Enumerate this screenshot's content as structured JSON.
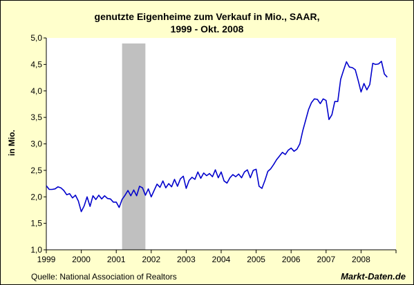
{
  "chart_data": {
    "type": "line",
    "title_line1": "genutzte Eigenheime zum Verkauf in Mio., SAAR,",
    "title_line2": "1999 - Okt. 2008",
    "xlabel": "",
    "ylabel": "in Mio.",
    "ylim": [
      1.0,
      5.0
    ],
    "xlim": [
      "1999-01",
      "2008-12"
    ],
    "y_ticks": [
      "1,0",
      "1,5",
      "2,0",
      "2,5",
      "3,0",
      "3,5",
      "4,0",
      "4,5",
      "5,0"
    ],
    "x_ticks": [
      "1999",
      "2000",
      "2001",
      "2002",
      "2003",
      "2004",
      "2005",
      "2006",
      "2007",
      "2008"
    ],
    "grid": false,
    "recession_shading": {
      "start": "2001-03",
      "end": "2001-11",
      "color": "#c0c0c0"
    },
    "series": [
      {
        "color": "#0000cc",
        "x": [
          "1999-01",
          "1999-02",
          "1999-03",
          "1999-04",
          "1999-05",
          "1999-06",
          "1999-07",
          "1999-08",
          "1999-09",
          "1999-10",
          "1999-11",
          "1999-12",
          "2000-01",
          "2000-02",
          "2000-03",
          "2000-04",
          "2000-05",
          "2000-06",
          "2000-07",
          "2000-08",
          "2000-09",
          "2000-10",
          "2000-11",
          "2000-12",
          "2001-01",
          "2001-02",
          "2001-03",
          "2001-04",
          "2001-05",
          "2001-06",
          "2001-07",
          "2001-08",
          "2001-09",
          "2001-10",
          "2001-11",
          "2001-12",
          "2002-01",
          "2002-02",
          "2002-03",
          "2002-04",
          "2002-05",
          "2002-06",
          "2002-07",
          "2002-08",
          "2002-09",
          "2002-10",
          "2002-11",
          "2002-12",
          "2003-01",
          "2003-02",
          "2003-03",
          "2003-04",
          "2003-05",
          "2003-06",
          "2003-07",
          "2003-08",
          "2003-09",
          "2003-10",
          "2003-11",
          "2003-12",
          "2004-01",
          "2004-02",
          "2004-03",
          "2004-04",
          "2004-05",
          "2004-06",
          "2004-07",
          "2004-08",
          "2004-09",
          "2004-10",
          "2004-11",
          "2004-12",
          "2005-01",
          "2005-02",
          "2005-03",
          "2005-04",
          "2005-05",
          "2005-06",
          "2005-07",
          "2005-08",
          "2005-09",
          "2005-10",
          "2005-11",
          "2005-12",
          "2006-01",
          "2006-02",
          "2006-03",
          "2006-04",
          "2006-05",
          "2006-06",
          "2006-07",
          "2006-08",
          "2006-09",
          "2006-10",
          "2006-11",
          "2006-12",
          "2007-01",
          "2007-02",
          "2007-03",
          "2007-04",
          "2007-05",
          "2007-06",
          "2007-07",
          "2007-08",
          "2007-09",
          "2007-10",
          "2007-11",
          "2007-12",
          "2008-01",
          "2008-02",
          "2008-03",
          "2008-04",
          "2008-05",
          "2008-06",
          "2008-07",
          "2008-08",
          "2008-09",
          "2008-10"
        ],
        "y": [
          2.21,
          2.14,
          2.14,
          2.15,
          2.19,
          2.17,
          2.12,
          2.04,
          2.06,
          1.98,
          2.03,
          1.92,
          1.72,
          1.83,
          2.0,
          1.82,
          2.02,
          1.95,
          2.03,
          1.96,
          2.02,
          1.97,
          1.96,
          1.9,
          1.9,
          1.8,
          1.95,
          2.03,
          2.12,
          2.02,
          2.13,
          2.02,
          2.2,
          2.17,
          2.03,
          2.15,
          2.0,
          2.12,
          2.24,
          2.18,
          2.3,
          2.17,
          2.25,
          2.19,
          2.33,
          2.2,
          2.34,
          2.39,
          2.16,
          2.31,
          2.37,
          2.33,
          2.47,
          2.35,
          2.45,
          2.4,
          2.44,
          2.38,
          2.51,
          2.36,
          2.47,
          2.3,
          2.26,
          2.36,
          2.42,
          2.38,
          2.43,
          2.36,
          2.47,
          2.51,
          2.36,
          2.5,
          2.52,
          2.2,
          2.16,
          2.31,
          2.48,
          2.53,
          2.61,
          2.7,
          2.77,
          2.84,
          2.8,
          2.88,
          2.92,
          2.86,
          2.9,
          3.0,
          3.25,
          3.45,
          3.65,
          3.78,
          3.85,
          3.84,
          3.76,
          3.85,
          3.82,
          3.46,
          3.55,
          3.8,
          3.8,
          4.22,
          4.39,
          4.55,
          4.45,
          4.44,
          4.4,
          4.2,
          3.98,
          4.14,
          4.02,
          4.12,
          4.52,
          4.5,
          4.51,
          4.56,
          4.32,
          4.26
        ]
      }
    ]
  },
  "footer": {
    "source": "Quelle: National Association of Realtors",
    "brand": "Markt-Daten.de"
  }
}
